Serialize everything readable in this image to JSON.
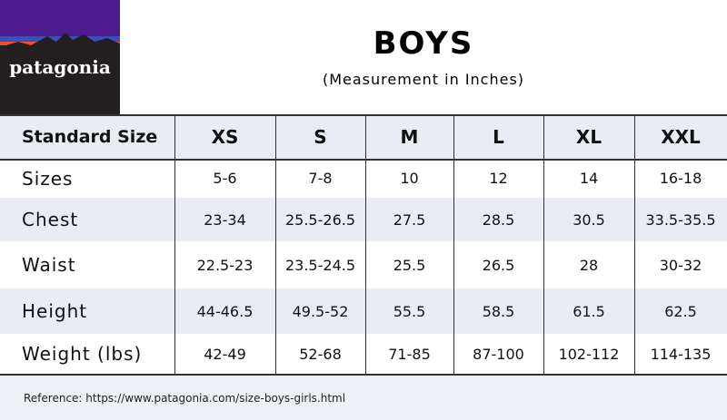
{
  "logo": {
    "text": "patagonia"
  },
  "header": {
    "title": "BOYS",
    "subtitle": "(Measurement in Inches)"
  },
  "table": {
    "columns": [
      "Standard Size",
      "XS",
      "S",
      "M",
      "L",
      "XL",
      "XXL"
    ],
    "rows": [
      [
        "Sizes",
        "5-6",
        "7-8",
        "10",
        "12",
        "14",
        "16-18"
      ],
      [
        "Chest",
        "23-34",
        "25.5-26.5",
        "27.5",
        "28.5",
        "30.5",
        "33.5-35.5"
      ],
      [
        "Waist",
        "22.5-23",
        "23.5-24.5",
        "25.5",
        "26.5",
        "28",
        "30-32"
      ],
      [
        "Height",
        "44-46.5",
        "49.5-52",
        "55.5",
        "58.5",
        "61.5",
        "62.5"
      ],
      [
        "Weight (lbs)",
        "42-49",
        "52-68",
        "71-85",
        "87-100",
        "102-112",
        "114-135"
      ]
    ]
  },
  "footer": {
    "reference": "Reference: https://www.patagonia.com/size-boys-girls.html"
  }
}
